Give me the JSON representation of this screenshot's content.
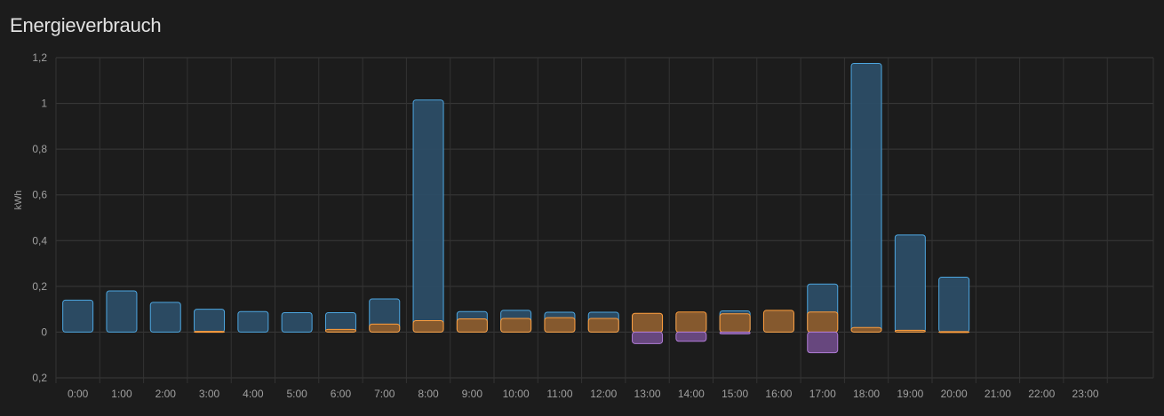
{
  "card": {
    "title": "Energieverbrauch"
  },
  "chart_data": {
    "type": "bar",
    "ylabel": "kWh",
    "ylim": [
      -0.2,
      1.2
    ],
    "y_ticks": [
      1.2,
      1,
      0.8,
      0.6,
      0.4,
      0.2,
      0,
      -0.2
    ],
    "y_tick_labels": [
      "1,2",
      "1",
      "0,8",
      "0,6",
      "0,4",
      "0,2",
      "0",
      "0,2"
    ],
    "grid": true,
    "categories": [
      "0:00",
      "1:00",
      "2:00",
      "3:00",
      "4:00",
      "5:00",
      "6:00",
      "7:00",
      "8:00",
      "9:00",
      "10:00",
      "11:00",
      "12:00",
      "13:00",
      "14:00",
      "15:00",
      "16:00",
      "17:00",
      "18:00",
      "19:00",
      "20:00",
      "21:00",
      "22:00",
      "23:00"
    ],
    "series": [
      {
        "color": "#4da6e0",
        "fill": "#2c4d66",
        "values": [
          0.14,
          0.18,
          0.13,
          0.1,
          0.09,
          0.085,
          0.085,
          0.145,
          1.015,
          0.09,
          0.095,
          0.087,
          0.087,
          0.08,
          0.08,
          0.093,
          0.09,
          0.21,
          1.175,
          0.425,
          0.24,
          0,
          0,
          0
        ]
      },
      {
        "color": "#ff9e3d",
        "fill": "#8a5a2b",
        "values": [
          0,
          0,
          0,
          0.003,
          0,
          0,
          0.012,
          0.035,
          0.05,
          0.058,
          0.06,
          0.063,
          0.06,
          0.082,
          0.088,
          0.08,
          0.095,
          0.088,
          0.02,
          0.008,
          0.002,
          0,
          0,
          0
        ]
      },
      {
        "color": "#b07cd6",
        "fill": "#6b4a84",
        "values": [
          0,
          0,
          0,
          0,
          0,
          0,
          0,
          0,
          0,
          0,
          0,
          0,
          0,
          -0.05,
          -0.04,
          -0.008,
          0,
          -0.09,
          0,
          0,
          0,
          0,
          0,
          0
        ]
      }
    ]
  }
}
